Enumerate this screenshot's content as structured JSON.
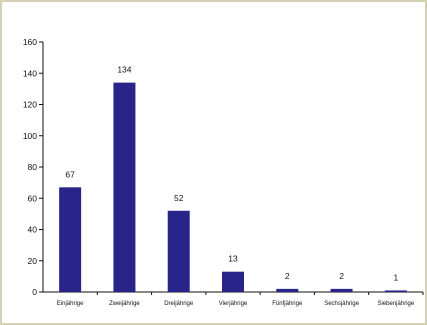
{
  "chart_data": {
    "type": "bar",
    "categories": [
      "Einjährige",
      "Zweijährige",
      "Dreijährige",
      "Vierjährige",
      "Fünfjährige",
      "Sechsjährige",
      "Siebenjährige"
    ],
    "values": [
      67,
      134,
      52,
      13,
      2,
      2,
      1
    ],
    "data_labels": [
      "67",
      "134",
      "52",
      "13",
      "2",
      "2",
      "1"
    ],
    "ylim": [
      0,
      160
    ],
    "yticks": [
      0,
      20,
      40,
      60,
      80,
      100,
      120,
      140,
      160
    ],
    "grid": false,
    "legend": "none",
    "bar_color": "#29248a"
  }
}
